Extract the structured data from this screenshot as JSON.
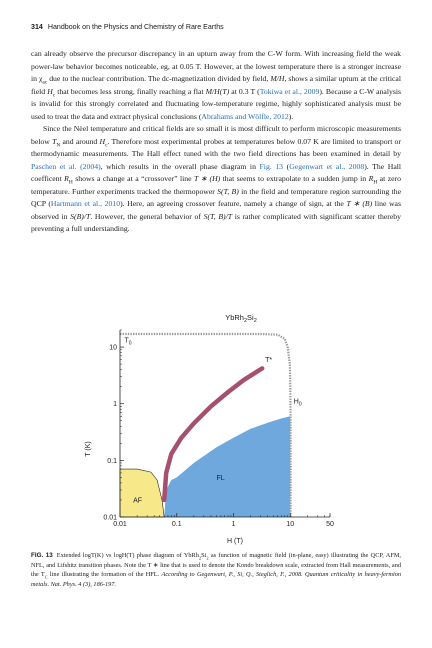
{
  "header": {
    "page_number": "314",
    "running_title": "Handbook on the Physics and Chemistry of Rare Earths"
  },
  "paragraphs": {
    "p1": {
      "t1": "can already observe the precursor discrepancy in an upturn away from the C-W form. With increasing field the weak power-law behavior becomes noticeable, eg, at 0.05 T. However, at the lowest temperature there is a stronger increase in χ",
      "t1_sub": "ac",
      "t2": " due to the nuclear contribution. The dc-magnetization divided by field, ",
      "t2_var": "M/H",
      "t3": ", shows a similar upturn at the critical field ",
      "t3_var": "H",
      "t3_sub": "c",
      "t4": " that becomes less strong, finally reaching a flat ",
      "t4_var": "M/H(T)",
      "t5": " at 0.3 T (",
      "c1": "Tokiwa et al., 2009",
      "t6": "). Because a C-W analysis is invalid for this strongly correlated and fluctuating low-temperature regime, highly sophisticated analysis must be used to treat the data and extract physical conclusions (",
      "c2": "Abrahams and Wölfle, 2012",
      "t7": ")."
    },
    "p2": {
      "t1": "Since the Nèel temperature and critical fields are so small it is most difficult to perform microscopic measurements below ",
      "v1": "T",
      "v1_sub": "N",
      "t2": " and around ",
      "v2": "H",
      "v2_sub": "c",
      "t3": ". Therefore most experimental probes at temperatures below 0.07 K are limited to transport or thermodynamic measurements. The Hall effect tuned with the two field directions has been examined in detail by ",
      "c1": "Paschen et al. (2004)",
      "t4": ", which results in the overall phase diagram in ",
      "c2": "Fig. 13",
      "t5": " (",
      "c3": "Gegenwart et al., 2008",
      "t6": "). The Hall coefficent ",
      "v3": "R",
      "v3_sub": "H",
      "t7": " shows a change at a “crossover” line ",
      "v4": "T ∗ (H)",
      "t8": " that seems to extrapolate to a sudden jump in ",
      "v5": "R",
      "v5_sub": "H",
      "t9": " at zero temperature. Further experiments tracked the thermopower ",
      "v6": "S(T, B)",
      "t10": " in the field and temperature region surrounding the QCP (",
      "c4": "Hartmann et al., 2010",
      "t11": "). Here, an agreeing crossover feature, namely a change of sign, at the ",
      "v7": "T ∗ (B)",
      "t12": " line was observed in ",
      "v8": "S(B)/T",
      "t13": ". However, the general behavior of ",
      "v9": "S(T, B)/T",
      "t14": " is rather complicated with significant scatter thereby preventing a full understanding."
    }
  },
  "figure": {
    "chart_data": {
      "type": "area",
      "title": "YbRh",
      "title_sub1": "2",
      "title_mid": "Si",
      "title_sub2": "2",
      "xlabel": "H (T)",
      "ylabel": "T (K)",
      "x_scale": "log",
      "y_scale": "log",
      "xlim": [
        0.01,
        50
      ],
      "ylim": [
        0.01,
        20
      ],
      "x_ticks": [
        "0.01",
        "0.1",
        "1",
        "10",
        "50"
      ],
      "y_ticks": [
        "0.01",
        "0.1",
        "1",
        "10"
      ],
      "x_tick_values": [
        0.01,
        0.1,
        1,
        10,
        50
      ],
      "y_tick_values": [
        0.01,
        0.1,
        1,
        10
      ],
      "annotations": {
        "T0": {
          "label": "T",
          "sub": "0"
        },
        "Tstar": {
          "label": "T*"
        },
        "H0": {
          "label": "H",
          "sub": "0"
        },
        "AF": {
          "label": "AF"
        },
        "FL": {
          "label": "FL"
        }
      },
      "colors": {
        "af": "#f7e98a",
        "fl": "#6fa8dc",
        "tstar": "#a6506f",
        "t0_line": "#999999"
      },
      "af_region": [
        [
          0.01,
          0.07
        ],
        [
          0.02,
          0.07
        ],
        [
          0.035,
          0.062
        ],
        [
          0.045,
          0.045
        ],
        [
          0.055,
          0.02
        ],
        [
          0.06,
          0.01
        ]
      ],
      "fl_boundary": [
        [
          0.06,
          0.01
        ],
        [
          0.065,
          0.03
        ],
        [
          0.08,
          0.045
        ],
        [
          0.1,
          0.05
        ],
        [
          0.2,
          0.09
        ],
        [
          0.5,
          0.17
        ],
        [
          1,
          0.25
        ],
        [
          2,
          0.36
        ],
        [
          4,
          0.46
        ],
        [
          7,
          0.55
        ],
        [
          10,
          0.6
        ]
      ],
      "tstar_line": [
        [
          0.06,
          0.02
        ],
        [
          0.065,
          0.06
        ],
        [
          0.08,
          0.13
        ],
        [
          0.12,
          0.25
        ],
        [
          0.2,
          0.45
        ],
        [
          0.4,
          0.9
        ],
        [
          0.8,
          1.6
        ],
        [
          1.5,
          2.6
        ],
        [
          2.5,
          3.6
        ],
        [
          3.2,
          4.2
        ]
      ],
      "t0_line": [
        [
          0.01,
          17
        ],
        [
          3,
          17
        ],
        [
          6,
          16.5
        ],
        [
          8,
          14
        ],
        [
          9,
          10
        ],
        [
          9.8,
          5
        ],
        [
          10,
          2
        ],
        [
          10.1,
          0.5
        ],
        [
          10.1,
          0.01
        ]
      ]
    }
  },
  "caption": {
    "label": "FIG. 13",
    "t1": "Extended logT(K) vs logH(T) phase diagram of YbRh",
    "s1": "2",
    "t2": "Si",
    "s2": "2",
    "t3": " as function of magnetic field (in-plane, easy) illustrating the QCP, AFM, NFL, and Lifshitz transition phases. Note the T ∗ line that is used to denote the Kondo breakdown scale, extracted from Hall measurements, and the T",
    "s3": "C",
    "t4": " line illustrating the formation of the HFL. ",
    "ref": "According to Gegenwart, P., Si, Q., Steglich, F., 2008. Quantum criticality in heavy-fermion metals. Nat. Phys. 4 (3), 186-197."
  }
}
